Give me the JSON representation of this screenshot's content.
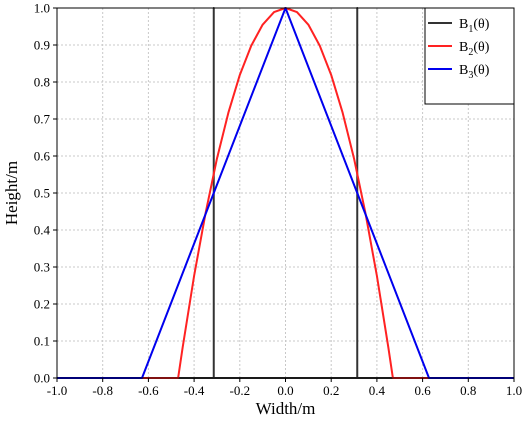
{
  "chart_data": {
    "type": "line",
    "xlabel": "Width/m",
    "ylabel": "Height/m",
    "xlim": [
      -1.0,
      1.0
    ],
    "ylim": [
      0.0,
      1.0
    ],
    "x_ticks": [
      "-1.0",
      "-0.8",
      "-0.6",
      "-0.4",
      "-0.2",
      "0.0",
      "0.2",
      "0.4",
      "0.6",
      "0.8",
      "1.0"
    ],
    "y_ticks": [
      "0.0",
      "0.1",
      "0.2",
      "0.3",
      "0.4",
      "0.5",
      "0.6",
      "0.7",
      "0.8",
      "0.9",
      "1.0"
    ],
    "x_tick_values": [
      -1.0,
      -0.8,
      -0.6,
      -0.4,
      -0.2,
      0.0,
      0.2,
      0.4,
      0.6,
      0.8,
      1.0
    ],
    "y_tick_values": [
      0.0,
      0.1,
      0.2,
      0.3,
      0.4,
      0.5,
      0.6,
      0.7,
      0.8,
      0.9,
      1.0
    ],
    "grid": true,
    "legend_position": "top-right",
    "series": [
      {
        "name": "B1(θ)",
        "label_base": "B",
        "label_sub": "1",
        "label_suffix": "(θ)",
        "color": "#333333",
        "x": [
          -1.0,
          -0.314,
          -0.314,
          -0.314,
          0.314,
          0.314,
          0.314,
          1.0
        ],
        "y": [
          0.0,
          0.0,
          1.0,
          0.0,
          0.0,
          1.0,
          0.0,
          0.0
        ]
      },
      {
        "name": "B2(θ)",
        "label_base": "B",
        "label_sub": "2",
        "label_suffix": "(θ)",
        "color": "#ff2222",
        "x": [
          -1.0,
          -0.47,
          -0.45,
          -0.4,
          -0.35,
          -0.3,
          -0.25,
          -0.2,
          -0.15,
          -0.1,
          -0.05,
          0.0,
          0.05,
          0.1,
          0.15,
          0.2,
          0.25,
          0.3,
          0.35,
          0.4,
          0.45,
          0.47,
          1.0
        ],
        "y": [
          0.0,
          0.0,
          0.083,
          0.276,
          0.445,
          0.593,
          0.717,
          0.819,
          0.898,
          0.955,
          0.989,
          1.0,
          0.989,
          0.955,
          0.898,
          0.819,
          0.717,
          0.593,
          0.445,
          0.276,
          0.083,
          0.0,
          0.0
        ]
      },
      {
        "name": "B3(θ)",
        "label_base": "B",
        "label_sub": "3",
        "label_suffix": "(θ)",
        "color": "#0000ee",
        "x": [
          -1.0,
          -0.628,
          0.0,
          0.628,
          1.0
        ],
        "y": [
          0.0,
          0.0,
          1.0,
          0.0,
          0.0
        ]
      }
    ]
  }
}
